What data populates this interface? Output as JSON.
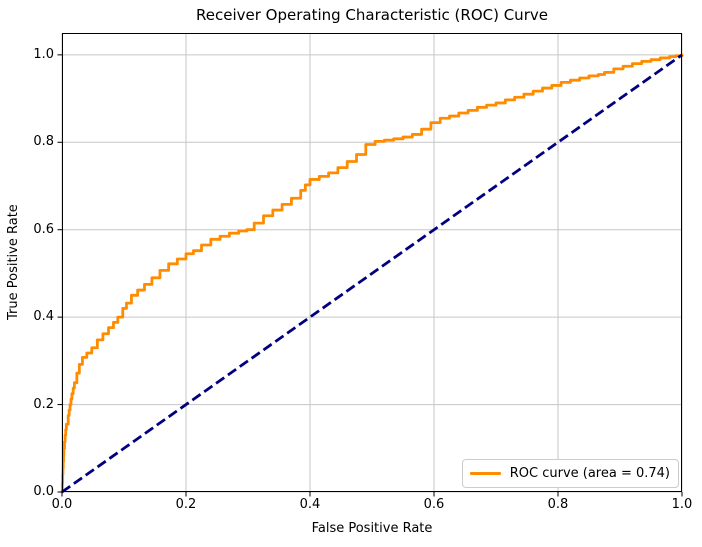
{
  "chart_data": {
    "type": "line",
    "title": "Receiver Operating Characteristic (ROC) Curve",
    "xlabel": "False Positive Rate",
    "ylabel": "True Positive Rate",
    "xlim": [
      0.0,
      1.0
    ],
    "ylim": [
      0.0,
      1.05
    ],
    "x_ticks": [
      0.0,
      0.2,
      0.4,
      0.6,
      0.8,
      1.0
    ],
    "x_tick_labels": [
      "0.0",
      "0.2",
      "0.4",
      "0.6",
      "0.8",
      "1.0"
    ],
    "y_ticks": [
      0.0,
      0.2,
      0.4,
      0.6,
      0.8,
      1.0
    ],
    "y_tick_labels": [
      "0.0",
      "0.2",
      "0.4",
      "0.6",
      "0.8",
      "1.0"
    ],
    "grid": true,
    "auc": 0.74,
    "legend": {
      "position": "lower right",
      "entries": [
        {
          "label": "ROC curve (area = 0.74)",
          "color": "#FF8C00"
        }
      ]
    },
    "colors": {
      "roc_curve": "#FF8C00",
      "chance_line": "#000080",
      "grid": "#c6c6c6",
      "spines": "#000000",
      "background": "#ffffff",
      "text": "#000000",
      "legend_border": "#cccccc"
    },
    "series": [
      {
        "name": "ROC curve (area = 0.74)",
        "color": "#FF8C00",
        "style": "solid",
        "render": "staircase",
        "points": [
          [
            0.0,
            0.0
          ],
          [
            0.001,
            0.04
          ],
          [
            0.002,
            0.07
          ],
          [
            0.003,
            0.1
          ],
          [
            0.005,
            0.13
          ],
          [
            0.007,
            0.155
          ],
          [
            0.01,
            0.175
          ],
          [
            0.013,
            0.2
          ],
          [
            0.016,
            0.225
          ],
          [
            0.02,
            0.25
          ],
          [
            0.024,
            0.272
          ],
          [
            0.028,
            0.292
          ],
          [
            0.033,
            0.308
          ],
          [
            0.04,
            0.318
          ],
          [
            0.048,
            0.33
          ],
          [
            0.057,
            0.348
          ],
          [
            0.066,
            0.362
          ],
          [
            0.075,
            0.376
          ],
          [
            0.083,
            0.388
          ],
          [
            0.09,
            0.4
          ],
          [
            0.098,
            0.42
          ],
          [
            0.104,
            0.432
          ],
          [
            0.112,
            0.45
          ],
          [
            0.122,
            0.462
          ],
          [
            0.133,
            0.475
          ],
          [
            0.145,
            0.49
          ],
          [
            0.158,
            0.507
          ],
          [
            0.172,
            0.522
          ],
          [
            0.186,
            0.533
          ],
          [
            0.2,
            0.545
          ],
          [
            0.212,
            0.552
          ],
          [
            0.225,
            0.565
          ],
          [
            0.24,
            0.578
          ],
          [
            0.255,
            0.585
          ],
          [
            0.27,
            0.592
          ],
          [
            0.285,
            0.597
          ],
          [
            0.298,
            0.6
          ],
          [
            0.31,
            0.615
          ],
          [
            0.325,
            0.632
          ],
          [
            0.34,
            0.645
          ],
          [
            0.355,
            0.658
          ],
          [
            0.37,
            0.672
          ],
          [
            0.385,
            0.69
          ],
          [
            0.4,
            0.715
          ],
          [
            0.415,
            0.722
          ],
          [
            0.43,
            0.73
          ],
          [
            0.445,
            0.742
          ],
          [
            0.46,
            0.756
          ],
          [
            0.475,
            0.772
          ],
          [
            0.49,
            0.795
          ],
          [
            0.505,
            0.802
          ],
          [
            0.52,
            0.805
          ],
          [
            0.535,
            0.808
          ],
          [
            0.55,
            0.812
          ],
          [
            0.565,
            0.818
          ],
          [
            0.58,
            0.83
          ],
          [
            0.595,
            0.845
          ],
          [
            0.61,
            0.855
          ],
          [
            0.625,
            0.86
          ],
          [
            0.64,
            0.867
          ],
          [
            0.655,
            0.873
          ],
          [
            0.67,
            0.88
          ],
          [
            0.685,
            0.885
          ],
          [
            0.7,
            0.89
          ],
          [
            0.715,
            0.897
          ],
          [
            0.73,
            0.903
          ],
          [
            0.745,
            0.91
          ],
          [
            0.76,
            0.917
          ],
          [
            0.775,
            0.924
          ],
          [
            0.79,
            0.93
          ],
          [
            0.805,
            0.937
          ],
          [
            0.82,
            0.942
          ],
          [
            0.835,
            0.947
          ],
          [
            0.85,
            0.952
          ],
          [
            0.865,
            0.955
          ],
          [
            0.875,
            0.96
          ],
          [
            0.89,
            0.968
          ],
          [
            0.905,
            0.974
          ],
          [
            0.92,
            0.98
          ],
          [
            0.935,
            0.985
          ],
          [
            0.95,
            0.989
          ],
          [
            0.965,
            0.993
          ],
          [
            0.98,
            0.996
          ],
          [
            1.0,
            1.0
          ]
        ]
      },
      {
        "name": "chance",
        "color": "#000080",
        "style": "dashed",
        "render": "straight",
        "points": [
          [
            0.0,
            0.0
          ],
          [
            1.0,
            1.0
          ]
        ]
      }
    ]
  }
}
